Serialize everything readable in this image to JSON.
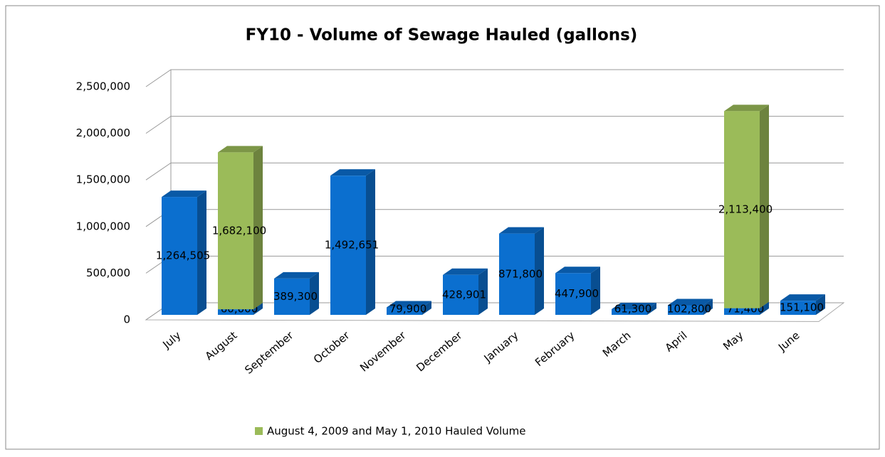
{
  "chart_data": {
    "type": "bar3d-stacked",
    "title": "FY10 - Volume of Sewage Hauled (gallons)",
    "categories": [
      "July",
      "August",
      "September",
      "October",
      "November",
      "December",
      "January",
      "February",
      "March",
      "April",
      "May",
      "June"
    ],
    "series": [
      {
        "color": "#0b6fcf",
        "values": [
          1264505,
          60000,
          389300,
          1492651,
          79900,
          428901,
          871800,
          447900,
          61300,
          102800,
          71400,
          151100
        ],
        "value_labels": [
          "1,264,505",
          "60,000",
          "389,300",
          "1,492,651",
          "79,900",
          "428,901",
          "871,800",
          "447,900",
          "61,300",
          "102,800",
          "71,400",
          "151,100"
        ]
      },
      {
        "name": "August 4, 2009 and May 1, 2010 Hauled Volume",
        "color": "#9bbb59",
        "values": [
          null,
          1682100,
          null,
          null,
          null,
          null,
          null,
          null,
          null,
          null,
          2113400,
          null
        ],
        "value_labels": [
          null,
          "1,682,100",
          null,
          null,
          null,
          null,
          null,
          null,
          null,
          null,
          "2,113,400",
          null
        ]
      }
    ],
    "ylim": [
      0,
      2500000
    ],
    "yticks": [
      0,
      {
        "value": 500000,
        "label": "500,000"
      },
      {
        "value": 1000000,
        "label": "1,000,000"
      },
      {
        "value": 1500000,
        "label": "1,500,000"
      },
      {
        "value": 2000000,
        "label": "2,000,000"
      },
      {
        "value": 2500000,
        "label": "2,500,000"
      }
    ],
    "grid": true,
    "legend": "bottom"
  }
}
